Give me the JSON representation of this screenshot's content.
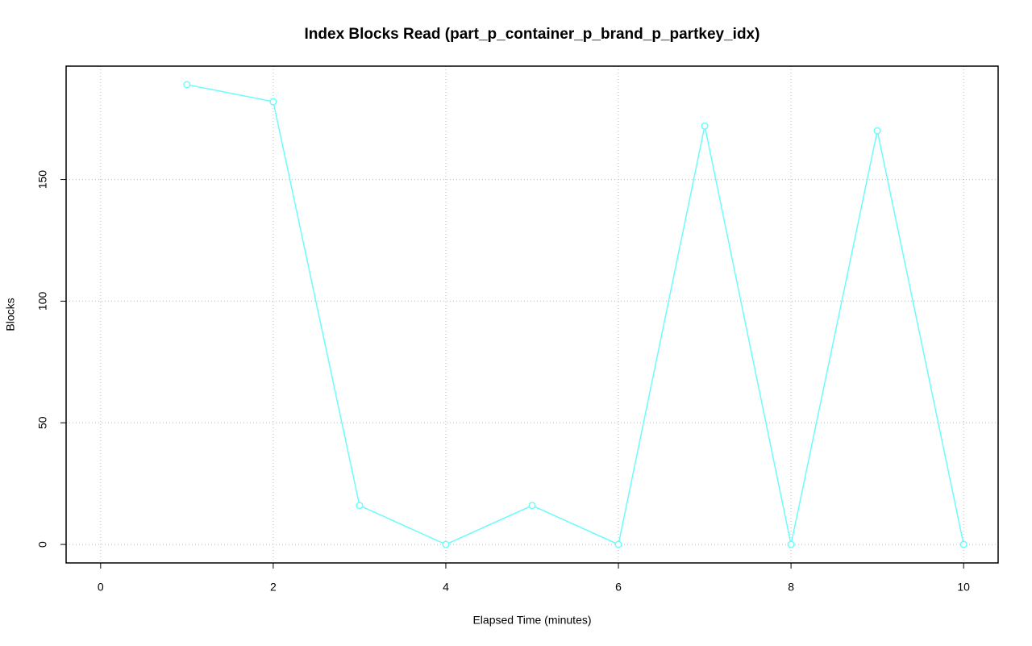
{
  "chart_data": {
    "type": "line",
    "title": "Index Blocks Read (part_p_container_p_brand_p_partkey_idx)",
    "x_label": "Elapsed Time (minutes)",
    "y_label": "Blocks",
    "x": [
      1,
      2,
      3,
      4,
      5,
      6,
      7,
      8,
      9,
      10
    ],
    "series": [
      {
        "color": "#6dfcfc",
        "values": [
          189,
          182,
          16,
          0,
          16,
          0,
          172,
          0,
          170,
          0
        ]
      }
    ],
    "xlim": [
      -0.4,
      10.4
    ],
    "xticks": [
      0,
      2,
      4,
      6,
      8,
      10
    ],
    "ylim": [
      -7.6,
      196.6
    ],
    "yticks": [
      0,
      50,
      100,
      150
    ],
    "grid": true
  }
}
